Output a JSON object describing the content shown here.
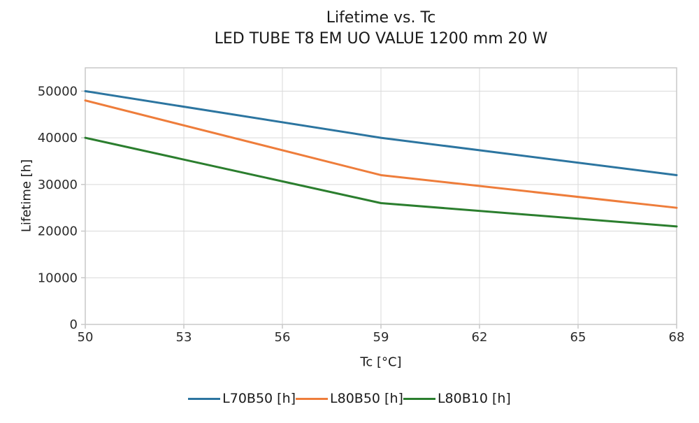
{
  "chart_data": {
    "type": "line",
    "title": "Lifetime vs. Tc",
    "subtitle": "LED TUBE T8 EM UO VALUE 1200 mm 20 W",
    "xlabel": "Tc [°C]",
    "ylabel": "Lifetime [h]",
    "x": [
      50,
      59,
      68
    ],
    "series": [
      {
        "name": "L70B50 [h]",
        "color": "#2c75a0",
        "values": [
          50000,
          40000,
          32000
        ]
      },
      {
        "name": "L80B50 [h]",
        "color": "#ee7d3b",
        "values": [
          48000,
          32000,
          25000
        ]
      },
      {
        "name": "L80B10 [h]",
        "color": "#2b7e2e",
        "values": [
          40000,
          26000,
          21000
        ]
      }
    ],
    "xtick_values": [
      50,
      53,
      56,
      59,
      62,
      65,
      68
    ],
    "ytick_values": [
      0,
      10000,
      20000,
      30000,
      40000,
      50000
    ],
    "xlim": [
      50,
      68
    ],
    "ylim": [
      0,
      55000
    ],
    "grid": true,
    "legend_position": "bottom"
  },
  "style": {
    "background": "#ffffff",
    "grid_color": "#d9d9d9",
    "spine_color": "#c9c9c9",
    "tick_label_color": "#2b2b2b",
    "title_color": "#1a1a1a",
    "line_width": 3
  }
}
